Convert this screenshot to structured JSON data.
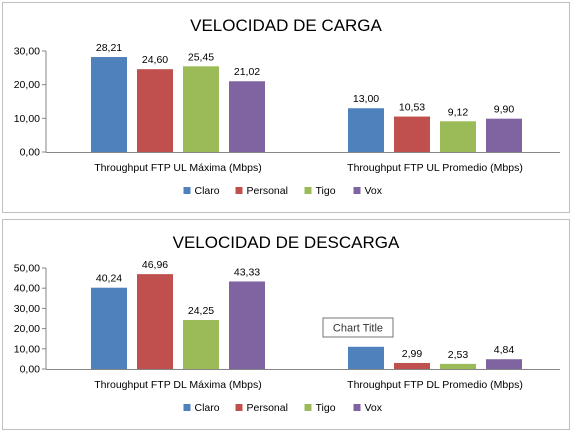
{
  "chart_data": [
    {
      "type": "bar",
      "title": "VELOCIDAD DE CARGA",
      "categories": [
        "Throughput FTP UL Máxima (Mbps)",
        "Throughput FTP UL Promedio (Mbps)"
      ],
      "series": [
        {
          "name": "Claro",
          "color": "#4f81bd",
          "values": [
            28.21,
            13.0
          ],
          "labels": [
            "28,21",
            "13,00"
          ]
        },
        {
          "name": "Personal",
          "color": "#c0504d",
          "values": [
            24.6,
            10.53
          ],
          "labels": [
            "24,60",
            "10,53"
          ]
        },
        {
          "name": "Tigo",
          "color": "#9bbb59",
          "values": [
            25.45,
            9.12
          ],
          "labels": [
            "25,45",
            "9,12"
          ]
        },
        {
          "name": "Vox",
          "color": "#8064a2",
          "values": [
            21.02,
            9.9
          ],
          "labels": [
            "21,02",
            "9,90"
          ]
        }
      ],
      "ylim": [
        0,
        30
      ],
      "yticks": [
        0,
        10,
        20,
        30
      ],
      "ytick_labels": [
        "0,00",
        "10,00",
        "20,00",
        "30,00"
      ],
      "grid": false,
      "legend": "bottom-center"
    },
    {
      "type": "bar",
      "title": "VELOCIDAD DE DESCARGA",
      "categories": [
        "Throughput FTP DL Máxima (Mbps)",
        "Throughput FTP DL Promedio (Mbps)"
      ],
      "series": [
        {
          "name": "Claro",
          "color": "#4f81bd",
          "values": [
            40.24,
            11.0
          ],
          "labels": [
            "40,24",
            ""
          ]
        },
        {
          "name": "Personal",
          "color": "#c0504d",
          "values": [
            46.96,
            2.99
          ],
          "labels": [
            "46,96",
            "2,99"
          ]
        },
        {
          "name": "Tigo",
          "color": "#9bbb59",
          "values": [
            24.25,
            2.53
          ],
          "labels": [
            "24,25",
            "2,53"
          ]
        },
        {
          "name": "Vox",
          "color": "#8064a2",
          "values": [
            43.33,
            4.84
          ],
          "labels": [
            "43,33",
            "4,84"
          ]
        }
      ],
      "ylim": [
        0,
        50
      ],
      "yticks": [
        0,
        10,
        20,
        30,
        40,
        50
      ],
      "ytick_labels": [
        "0,00",
        "10,00",
        "20,00",
        "30,00",
        "40,00",
        "50,00"
      ],
      "grid": false,
      "legend": "bottom-center",
      "tooltip": "Chart Title"
    }
  ]
}
